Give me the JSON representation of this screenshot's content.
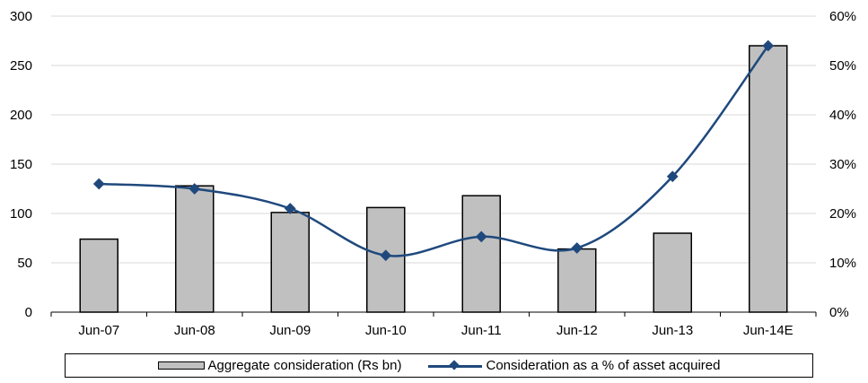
{
  "chart_data": {
    "type": "bar",
    "categories": [
      "Jun-07",
      "Jun-08",
      "Jun-09",
      "Jun-10",
      "Jun-11",
      "Jun-12",
      "Jun-13",
      "Jun-14E"
    ],
    "series": [
      {
        "name": "Aggregate consideration (Rs bn)",
        "type": "bar",
        "axis": "left",
        "color": "#c0c0c0",
        "values": [
          74,
          128,
          101,
          106,
          118,
          64,
          80,
          270
        ]
      },
      {
        "name": "Consideration as a % of asset acquired",
        "type": "line",
        "axis": "right",
        "color": "#1f497d",
        "values": [
          26,
          25,
          21,
          11.5,
          15.3,
          13,
          27.5,
          54
        ]
      }
    ],
    "y_left": {
      "min": 0,
      "max": 300,
      "ticks": [
        0,
        50,
        100,
        150,
        200,
        250,
        300
      ]
    },
    "y_right": {
      "min": 0,
      "max": 60,
      "ticks": [
        "0%",
        "10%",
        "20%",
        "30%",
        "40%",
        "50%",
        "60%"
      ]
    },
    "grid": true,
    "legend_position": "bottom"
  },
  "legend": {
    "bar_label": "Aggregate consideration (Rs bn)",
    "line_label": "Consideration as a % of asset acquired"
  }
}
